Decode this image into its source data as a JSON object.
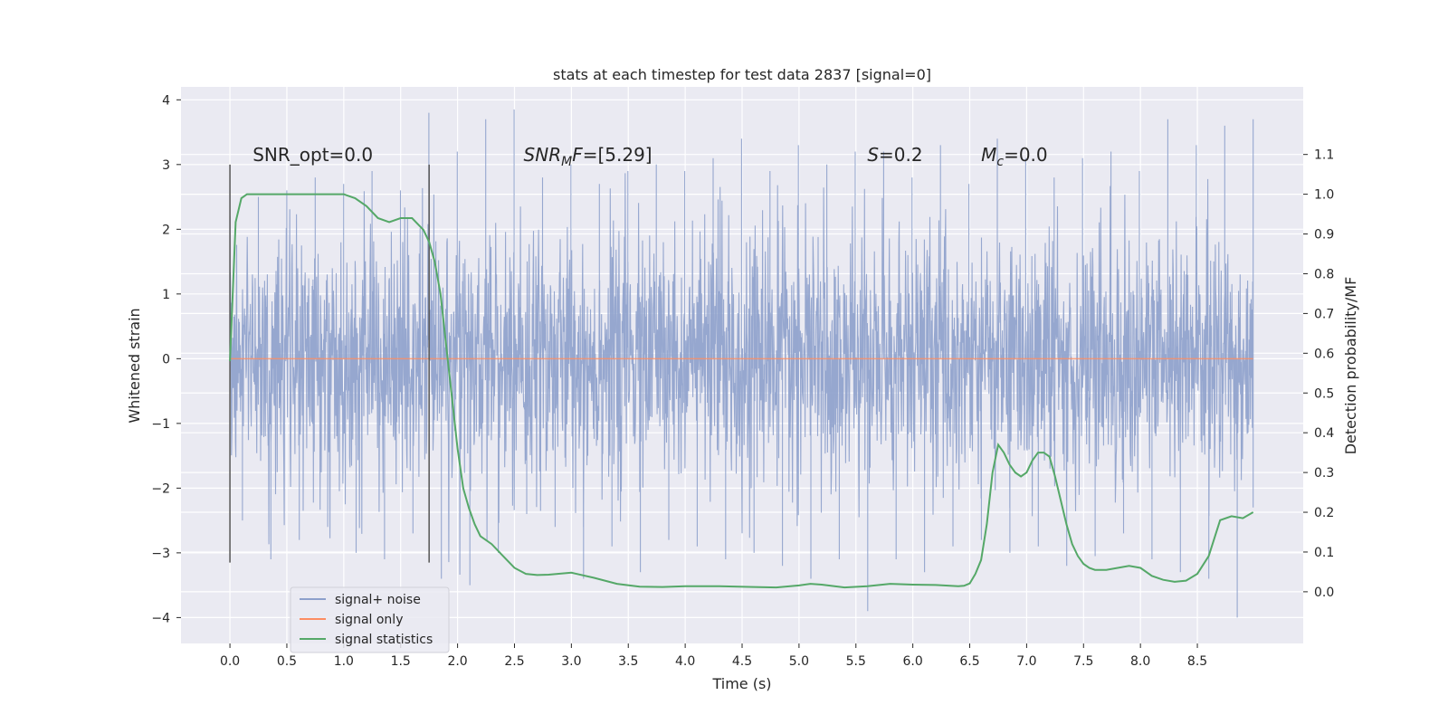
{
  "chart_data": {
    "type": "line",
    "title": "stats at each timestep for test data 2837 [signal=0]",
    "xlabel": "Time (s)",
    "ylabel": "Whitened strain",
    "y2label": "Detection probability/MF",
    "xlim": [
      -0.43,
      9.43
    ],
    "ylim": [
      -4.4,
      4.2
    ],
    "y2lim": [
      -0.13,
      1.27
    ],
    "xticks": [
      0.0,
      0.5,
      1.0,
      1.5,
      2.0,
      2.5,
      3.0,
      3.5,
      4.0,
      4.5,
      5.0,
      5.5,
      6.0,
      6.5,
      7.0,
      7.5,
      8.0,
      8.5
    ],
    "xtick_labels": [
      "0.0",
      "0.5",
      "1.0",
      "1.5",
      "2.0",
      "2.5",
      "3.0",
      "3.5",
      "4.0",
      "4.5",
      "5.0",
      "5.5",
      "6.0",
      "6.5",
      "7.0",
      "7.5",
      "8.0",
      "8.5"
    ],
    "yticks": [
      -4,
      -3,
      -2,
      -1,
      0,
      1,
      2,
      3,
      4
    ],
    "ytick_labels": [
      "−4",
      "−3",
      "−2",
      "−1",
      "0",
      "1",
      "2",
      "3",
      "4"
    ],
    "y2ticks": [
      0.0,
      0.1,
      0.2,
      0.3,
      0.4,
      0.5,
      0.6,
      0.7,
      0.8,
      0.9,
      1.0,
      1.1
    ],
    "y2tick_labels": [
      "0.0",
      "0.1",
      "0.2",
      "0.3",
      "0.4",
      "0.5",
      "0.6",
      "0.7",
      "0.8",
      "0.9",
      "1.0",
      "1.1"
    ],
    "grid": true,
    "legend_position": "lower-left",
    "series": [
      {
        "name": "signal+ noise",
        "color": "#8da0cb",
        "axis": "left",
        "kind": "noise",
        "time_range": [
          0.0,
          8.99
        ],
        "envelope_upper": [
          2.2,
          2.5,
          2.6,
          2.8,
          2.7,
          2.9,
          2.6,
          3.8,
          3.2,
          3.7,
          3.85,
          2.8,
          3.0,
          2.7,
          2.9,
          3.0,
          2.9,
          3.1,
          3.4,
          2.9,
          3.3,
          3.0,
          3.2,
          3.2,
          2.8,
          3.3,
          2.7,
          3.4,
          3.1,
          2.8,
          3.1,
          3.2,
          2.9,
          3.7,
          3.3,
          3.6,
          3.7
        ],
        "envelope_lower": [
          -2.5,
          -3.1,
          -2.8,
          -2.6,
          -3.0,
          -3.1,
          -2.7,
          -3.4,
          -3.5,
          -3.0,
          -2.4,
          -2.6,
          -3.4,
          -2.9,
          -3.3,
          -2.8,
          -2.9,
          -3.1,
          -3.0,
          -3.2,
          -3.4,
          -3.1,
          -3.9,
          -3.1,
          -3.3,
          -2.9,
          -2.8,
          -3.0,
          -2.9,
          -3.2,
          -3.05,
          -2.7,
          -3.1,
          -3.3,
          -3.4,
          -4.0,
          -2.3
        ],
        "dense_band": [
          -1.35,
          1.2
        ]
      },
      {
        "name": "signal only",
        "color": "#fc8d62",
        "axis": "left",
        "x": [
          0.0,
          8.99
        ],
        "y": [
          0.0,
          0.0
        ]
      },
      {
        "name": "signal statistics",
        "color": "#55a868",
        "axis": "right",
        "x": [
          0.0,
          0.05,
          0.1,
          0.15,
          0.2,
          0.3,
          0.4,
          0.6,
          0.8,
          1.0,
          1.1,
          1.2,
          1.3,
          1.4,
          1.5,
          1.6,
          1.7,
          1.75,
          1.8,
          1.85,
          1.9,
          1.95,
          2.0,
          2.05,
          2.1,
          2.15,
          2.2,
          2.3,
          2.4,
          2.5,
          2.6,
          2.7,
          2.8,
          3.0,
          3.2,
          3.4,
          3.6,
          3.8,
          4.0,
          4.3,
          4.6,
          4.8,
          5.0,
          5.1,
          5.2,
          5.4,
          5.6,
          5.8,
          6.0,
          6.2,
          6.4,
          6.45,
          6.5,
          6.55,
          6.6,
          6.65,
          6.7,
          6.75,
          6.8,
          6.85,
          6.9,
          6.95,
          7.0,
          7.05,
          7.1,
          7.15,
          7.2,
          7.25,
          7.3,
          7.35,
          7.4,
          7.45,
          7.5,
          7.55,
          7.6,
          7.7,
          7.8,
          7.9,
          8.0,
          8.1,
          8.2,
          8.3,
          8.4,
          8.5,
          8.6,
          8.7,
          8.8,
          8.9,
          8.99
        ],
        "y": [
          0.58,
          0.93,
          0.99,
          1.0,
          1.0,
          1.0,
          1.0,
          1.0,
          1.0,
          1.0,
          0.99,
          0.97,
          0.94,
          0.93,
          0.94,
          0.94,
          0.91,
          0.88,
          0.83,
          0.75,
          0.62,
          0.49,
          0.36,
          0.26,
          0.21,
          0.17,
          0.14,
          0.12,
          0.09,
          0.06,
          0.045,
          0.042,
          0.043,
          0.048,
          0.035,
          0.02,
          0.013,
          0.012,
          0.014,
          0.014,
          0.012,
          0.011,
          0.016,
          0.02,
          0.018,
          0.011,
          0.014,
          0.02,
          0.018,
          0.017,
          0.014,
          0.015,
          0.021,
          0.045,
          0.08,
          0.17,
          0.3,
          0.37,
          0.35,
          0.32,
          0.3,
          0.29,
          0.3,
          0.33,
          0.35,
          0.35,
          0.34,
          0.29,
          0.23,
          0.17,
          0.12,
          0.09,
          0.07,
          0.06,
          0.055,
          0.055,
          0.06,
          0.065,
          0.06,
          0.04,
          0.03,
          0.025,
          0.028,
          0.045,
          0.09,
          0.18,
          0.19,
          0.185,
          0.2
        ]
      }
    ],
    "vlines": [
      {
        "x": 0.0,
        "ymin": -3.15,
        "ymax": 3.0,
        "color": "#555555"
      },
      {
        "x": 1.75,
        "ymin": -3.15,
        "ymax": 3.0,
        "color": "#555555"
      }
    ],
    "annotations": [
      {
        "text": "SNR_opt=0.0",
        "x": 0.2,
        "y": 3.15,
        "math": false
      },
      {
        "text": "SNR",
        "sub": "M",
        "tail": "F=[5.29]",
        "x": 2.58,
        "y": 3.15,
        "math": true
      },
      {
        "text": "S",
        "tail": "=0.2",
        "x": 5.6,
        "y": 3.15,
        "math": true
      },
      {
        "text": "M",
        "sub": "c",
        "tail": "=0.0",
        "x": 6.6,
        "y": 3.15,
        "math": true
      }
    ],
    "legend": [
      "signal+ noise",
      "signal only",
      "signal statistics"
    ]
  },
  "colors": {
    "plot_bg": "#eaeaf2",
    "grid": "#ffffff",
    "text": "#262626"
  }
}
